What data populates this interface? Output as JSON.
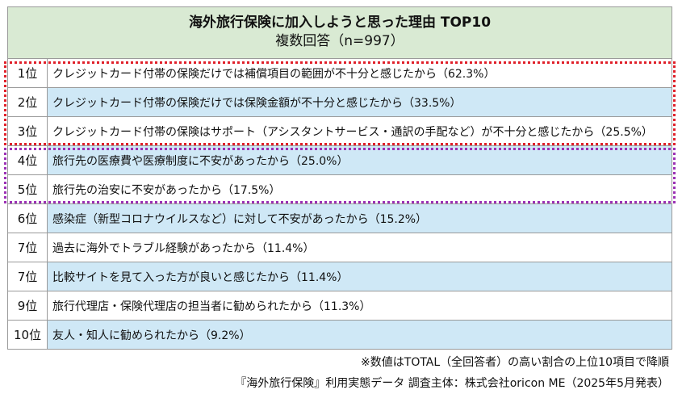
{
  "header": {
    "title": "海外旅行保険に加入しようと思った理由 TOP10",
    "subtitle": "複数回答（n=997）"
  },
  "rows": [
    {
      "rank": "1位",
      "reason": "クレジットカード付帯の保険だけでは補償項目の範囲が不十分と感じたから（62.3%）"
    },
    {
      "rank": "2位",
      "reason": "クレジットカード付帯の保険だけでは保険金額が不十分と感じたから（33.5%）"
    },
    {
      "rank": "3位",
      "reason": "クレジットカード付帯の保険はサポート（アシスタントサービス・通訳の手配など）が不十分と感じたから（25.5%）"
    },
    {
      "rank": "4位",
      "reason": "旅行先の医療費や医療制度に不安があったから（25.0%）"
    },
    {
      "rank": "5位",
      "reason": "旅行先の治安に不安があったから（17.5%）"
    },
    {
      "rank": "6位",
      "reason": "感染症（新型コロナウイルスなど）に対して不安があったから（15.2%）"
    },
    {
      "rank": "7位",
      "reason": "過去に海外でトラブル経験があったから（11.4%）"
    },
    {
      "rank": "7位",
      "reason": "比較サイトを見て入った方が良いと感じたから（11.4%）"
    },
    {
      "rank": "9位",
      "reason": "旅行代理店・保険代理店の担当者に勧められたから（11.3%）"
    },
    {
      "rank": "10位",
      "reason": "友人・知人に勧められたから（9.2%）"
    }
  ],
  "footer": {
    "note": "※数値はTOTAL（全回答者）の高い割合の上位10項目で降順",
    "source": "『海外旅行保険』利用実態データ 調査主体：株式会社oricon ME（2025年5月発表）"
  },
  "colors": {
    "header_bg": "#d9ead3",
    "row_blue": "#cfe8f6",
    "highlight_red": "#e0202a",
    "highlight_purple": "#9b30b5"
  }
}
